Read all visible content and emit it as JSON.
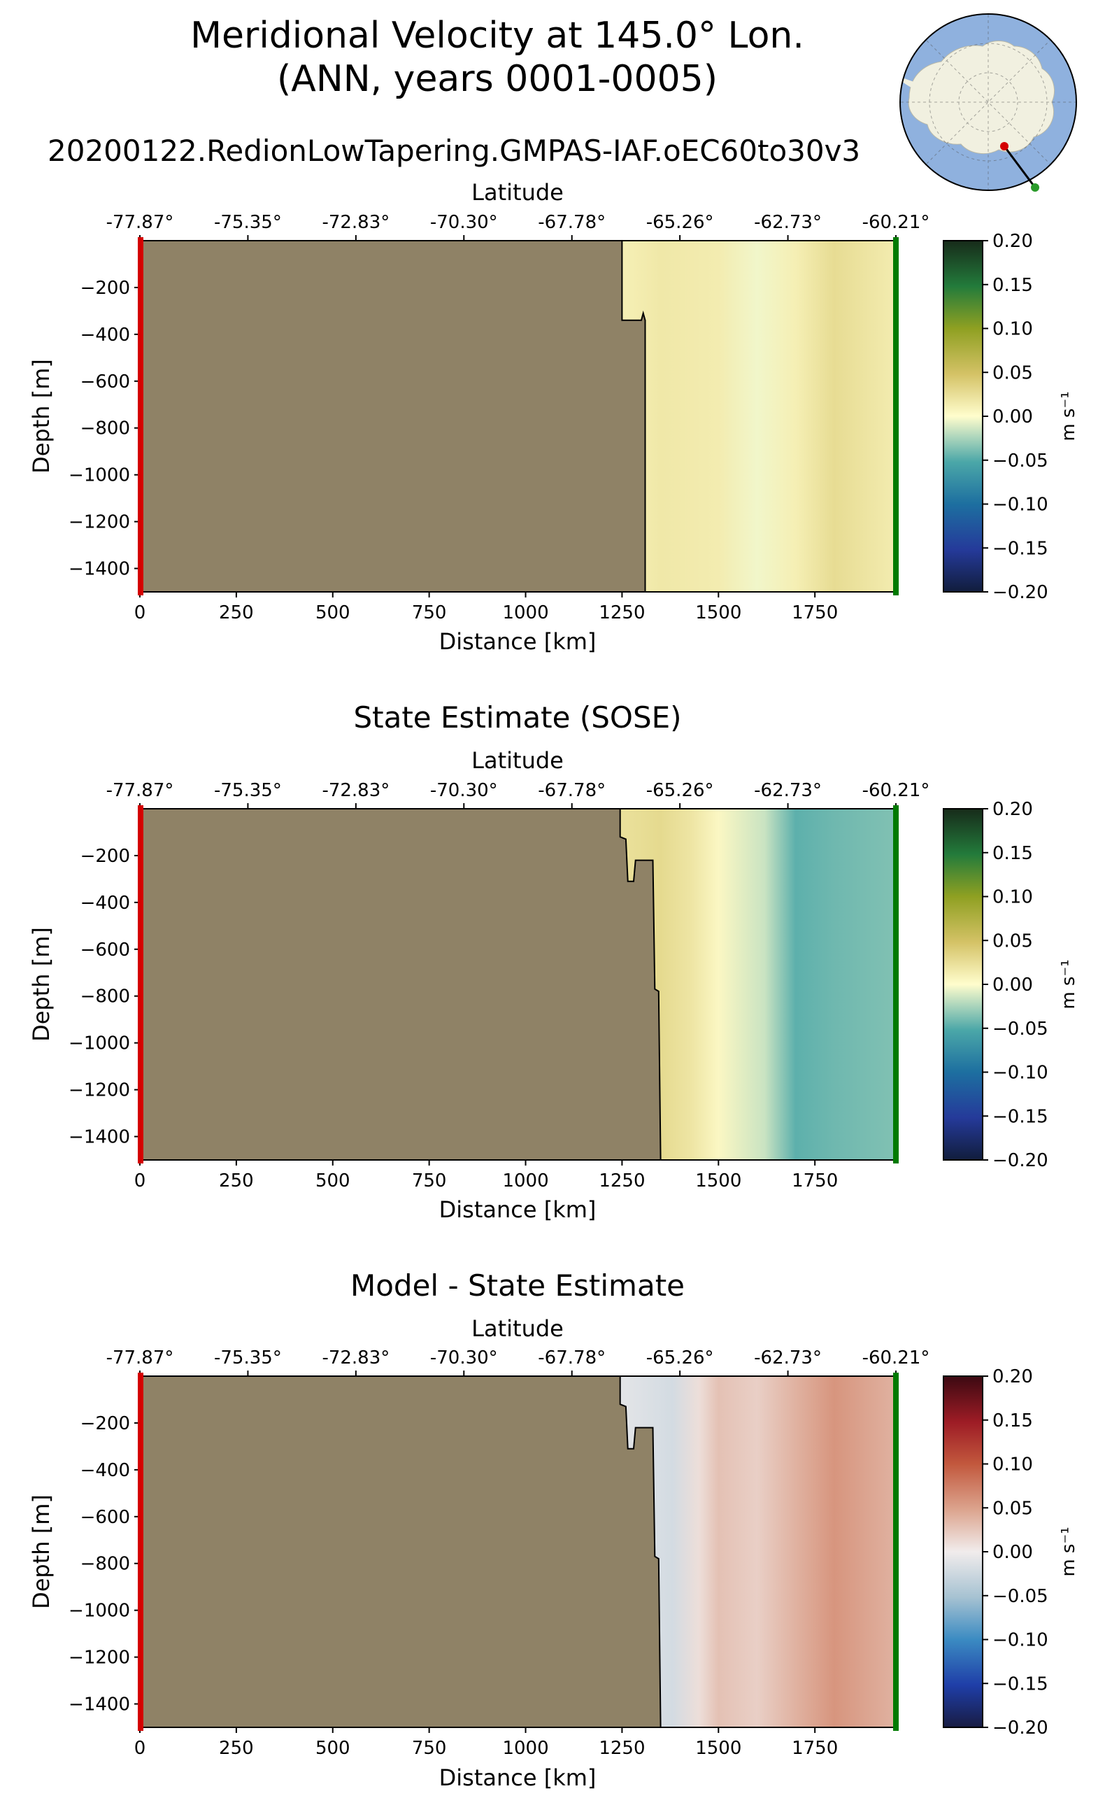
{
  "figure": {
    "title_line1": "Meridional Velocity at 145.0° Lon.",
    "title_line2": "(ANN, years 0001-0005)",
    "run_title": "20200122.RedionLowTapering.GMPAS-IAF.oEC60to30v3"
  },
  "colors": {
    "land": "#8f8266",
    "transect_start": "#d40000",
    "transect_end": "#007a00",
    "map_ocean": "#8fb1de",
    "map_land": "#f1f0e0"
  },
  "chart_data": [
    {
      "type": "heatmap",
      "panel": "model",
      "title": "",
      "xlabel": "Distance [km]",
      "ylabel": "Depth [m]",
      "top_axis_label": "Latitude",
      "xlim": [
        0,
        1960
      ],
      "ylim": [
        -1500,
        0
      ],
      "x_ticks": [
        0,
        250,
        500,
        750,
        1000,
        1250,
        1500,
        1750
      ],
      "x_tick_labels": [
        "0",
        "250",
        "500",
        "750",
        "1000",
        "1250",
        "1500",
        "1750"
      ],
      "y_ticks": [
        -200,
        -400,
        -600,
        -800,
        -1000,
        -1200,
        -1400
      ],
      "y_tick_labels": [
        "−200",
        "−400",
        "−600",
        "−800",
        "−1000",
        "−1200",
        "−1400"
      ],
      "lat_ticks_km": [
        0,
        280,
        560,
        840,
        1120,
        1400,
        1680,
        1960
      ],
      "lat_tick_labels": [
        "-77.87°",
        "-75.35°",
        "-72.83°",
        "-70.30°",
        "-67.78°",
        "-65.26°",
        "-62.73°",
        "-60.21°"
      ],
      "colorbar": {
        "label": "m s⁻¹",
        "min": -0.2,
        "max": 0.2,
        "ticks": [
          "0.20",
          "0.15",
          "0.10",
          "0.05",
          "0.00",
          "−0.05",
          "−0.10",
          "−0.15",
          "−0.20"
        ],
        "cmap": "delta"
      },
      "land_boundary_km": [
        [
          1250,
          0
        ],
        [
          1250,
          -340
        ],
        [
          1300,
          -340
        ],
        [
          1305,
          -310
        ],
        [
          1310,
          -340
        ],
        [
          1310,
          -1500
        ]
      ],
      "velocity_profile": {
        "x_km": [
          1260,
          1350,
          1500,
          1600,
          1700,
          1800,
          1960
        ],
        "v_ms": [
          0.012,
          0.018,
          0.014,
          -0.004,
          0.012,
          0.028,
          0.014
        ]
      }
    },
    {
      "type": "heatmap",
      "panel": "sose",
      "title": "State Estimate (SOSE)",
      "xlabel": "Distance [km]",
      "ylabel": "Depth [m]",
      "top_axis_label": "Latitude",
      "xlim": [
        0,
        1960
      ],
      "ylim": [
        -1500,
        0
      ],
      "x_ticks": [
        0,
        250,
        500,
        750,
        1000,
        1250,
        1500,
        1750
      ],
      "x_tick_labels": [
        "0",
        "250",
        "500",
        "750",
        "1000",
        "1250",
        "1500",
        "1750"
      ],
      "y_ticks": [
        -200,
        -400,
        -600,
        -800,
        -1000,
        -1200,
        -1400
      ],
      "y_tick_labels": [
        "−200",
        "−400",
        "−600",
        "−800",
        "−1000",
        "−1200",
        "−1400"
      ],
      "lat_ticks_km": [
        0,
        280,
        560,
        840,
        1120,
        1400,
        1680,
        1960
      ],
      "lat_tick_labels": [
        "-77.87°",
        "-75.35°",
        "-72.83°",
        "-70.30°",
        "-67.78°",
        "-65.26°",
        "-62.73°",
        "-60.21°"
      ],
      "colorbar": {
        "label": "m s⁻¹",
        "min": -0.2,
        "max": 0.2,
        "ticks": [
          "0.20",
          "0.15",
          "0.10",
          "0.05",
          "0.00",
          "−0.05",
          "−0.10",
          "−0.15",
          "−0.20"
        ],
        "cmap": "delta"
      },
      "land_boundary_km": [
        [
          1245,
          0
        ],
        [
          1245,
          -120
        ],
        [
          1260,
          -130
        ],
        [
          1265,
          -310
        ],
        [
          1280,
          -310
        ],
        [
          1285,
          -220
        ],
        [
          1330,
          -220
        ],
        [
          1335,
          -770
        ],
        [
          1345,
          -780
        ],
        [
          1350,
          -1500
        ]
      ],
      "velocity_profile": {
        "x_km": [
          1260,
          1350,
          1430,
          1500,
          1620,
          1700,
          1800,
          1960
        ],
        "v_ms": [
          0.025,
          0.03,
          0.02,
          0.005,
          -0.015,
          -0.045,
          -0.04,
          -0.035
        ]
      }
    },
    {
      "type": "heatmap",
      "panel": "difference",
      "title": "Model - State Estimate",
      "xlabel": "Distance [km]",
      "ylabel": "Depth [m]",
      "top_axis_label": "Latitude",
      "xlim": [
        0,
        1960
      ],
      "ylim": [
        -1500,
        0
      ],
      "x_ticks": [
        0,
        250,
        500,
        750,
        1000,
        1250,
        1500,
        1750
      ],
      "x_tick_labels": [
        "0",
        "250",
        "500",
        "750",
        "1000",
        "1250",
        "1500",
        "1750"
      ],
      "y_ticks": [
        -200,
        -400,
        -600,
        -800,
        -1000,
        -1200,
        -1400
      ],
      "y_tick_labels": [
        "−200",
        "−400",
        "−600",
        "−800",
        "−1000",
        "−1200",
        "−1400"
      ],
      "lat_ticks_km": [
        0,
        280,
        560,
        840,
        1120,
        1400,
        1680,
        1960
      ],
      "lat_tick_labels": [
        "-77.87°",
        "-75.35°",
        "-72.83°",
        "-70.30°",
        "-67.78°",
        "-65.26°",
        "-62.73°",
        "-60.21°"
      ],
      "colorbar": {
        "label": "m s⁻¹",
        "min": -0.2,
        "max": 0.2,
        "ticks": [
          "0.20",
          "0.15",
          "0.10",
          "0.05",
          "0.00",
          "−0.05",
          "−0.10",
          "−0.15",
          "−0.20"
        ],
        "cmap": "balance"
      },
      "land_boundary_km": [
        [
          1245,
          0
        ],
        [
          1245,
          -120
        ],
        [
          1260,
          -130
        ],
        [
          1265,
          -310
        ],
        [
          1280,
          -310
        ],
        [
          1285,
          -220
        ],
        [
          1330,
          -220
        ],
        [
          1335,
          -770
        ],
        [
          1345,
          -780
        ],
        [
          1350,
          -1500
        ]
      ],
      "velocity_profile": {
        "x_km": [
          1260,
          1380,
          1450,
          1500,
          1600,
          1700,
          1800,
          1960
        ],
        "v_ms": [
          -0.01,
          -0.02,
          0.01,
          0.03,
          0.02,
          0.04,
          0.06,
          0.04
        ]
      }
    }
  ]
}
